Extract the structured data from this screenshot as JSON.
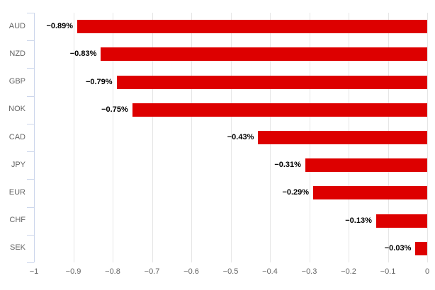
{
  "chart_data": {
    "type": "bar",
    "orientation": "horizontal",
    "title": "",
    "xlabel": "",
    "ylabel": "",
    "categories": [
      "AUD",
      "NZD",
      "GBP",
      "NOK",
      "CAD",
      "JPY",
      "EUR",
      "CHF",
      "SEK"
    ],
    "values": [
      -0.89,
      -0.83,
      -0.79,
      -0.75,
      -0.43,
      -0.31,
      -0.29,
      -0.13,
      -0.03
    ],
    "data_labels": [
      "−0.89%",
      "−0.83%",
      "−0.79%",
      "−0.75%",
      "−0.43%",
      "−0.31%",
      "−0.29%",
      "−0.13%",
      "−0.03%"
    ],
    "xlim": [
      -1,
      0
    ],
    "x_tick_values": [
      -1,
      -0.9,
      -0.8,
      -0.7,
      -0.6,
      -0.5,
      -0.4,
      -0.3,
      -0.2,
      -0.1,
      0
    ],
    "x_tick_labels": [
      "−1",
      "−0.9",
      "−0.8",
      "−0.7",
      "−0.6",
      "−0.5",
      "−0.4",
      "−0.3",
      "−0.2",
      "−0.1",
      "0"
    ],
    "grid": "vertical",
    "legend": "none",
    "bar_color": "#dd0000",
    "grid_color": "#e6e6e6",
    "axis_line_color": "#ccd6eb",
    "tick_label_color": "#666666",
    "data_label_color": "#000000"
  }
}
